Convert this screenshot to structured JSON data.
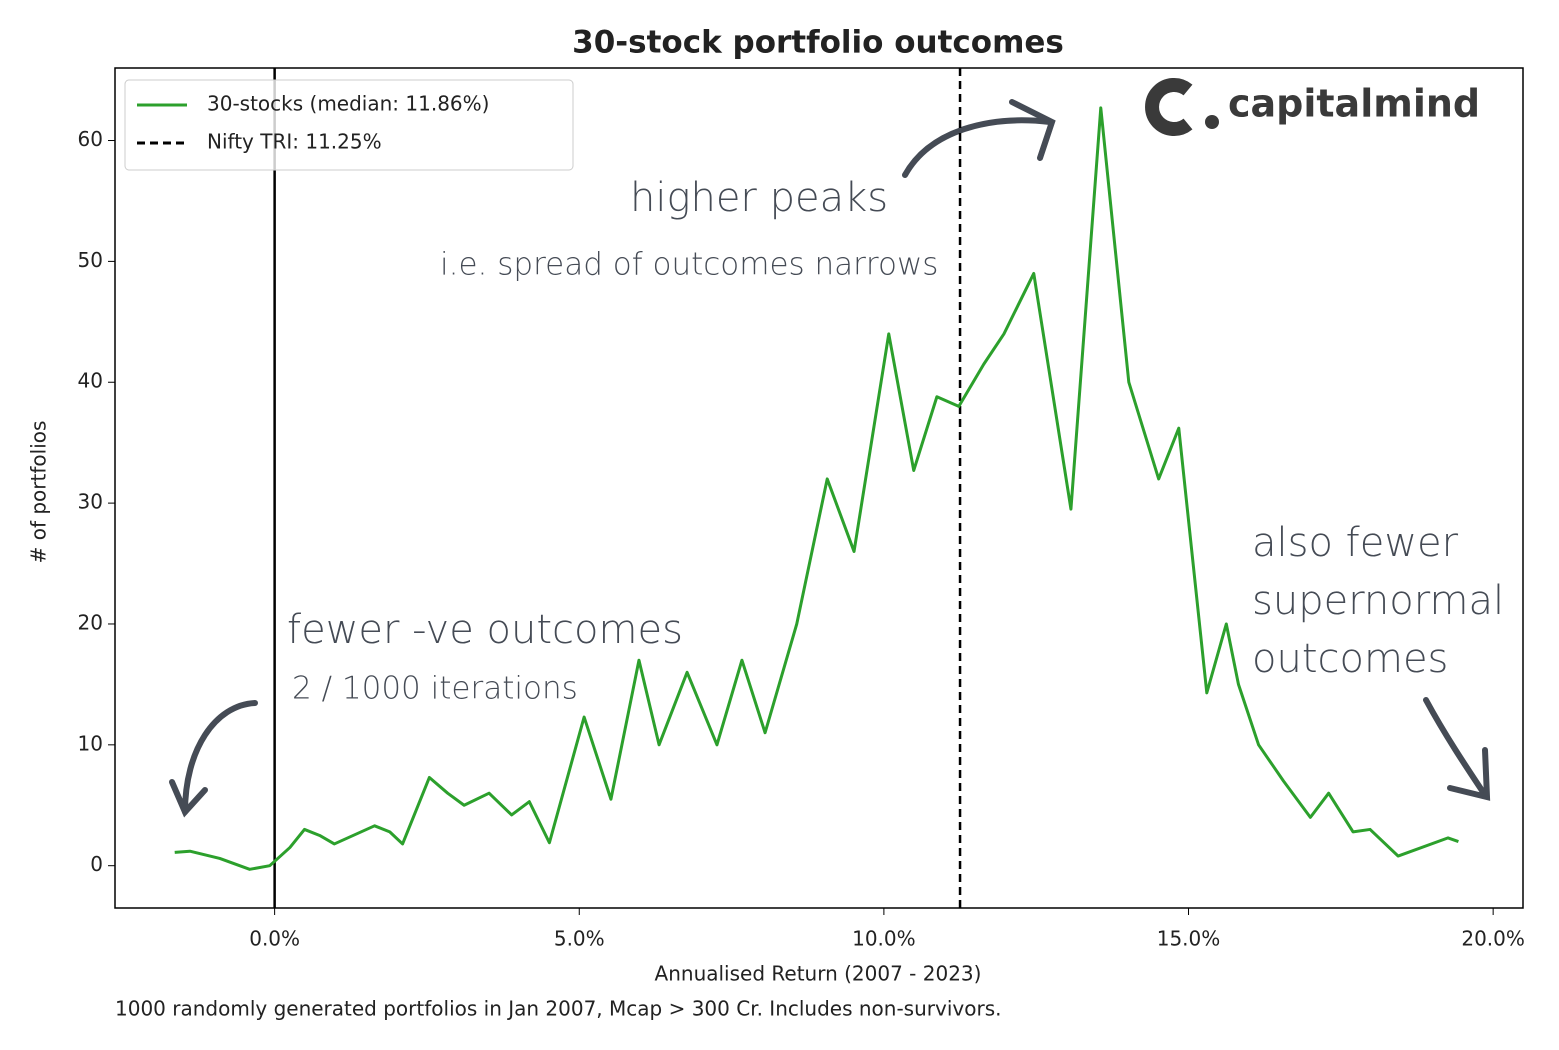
{
  "chart_data": {
    "type": "line",
    "title": "30-stock portfolio outcomes",
    "x_label": "Annualised Return (2007 - 2023)",
    "y_label": "# of portfolios",
    "caption": "1000 randomly generated portfolios in Jan 2007, Mcap > 300 Cr. Includes non-survivors.",
    "x": [
      -1.64,
      -1.39,
      -0.9,
      -0.41,
      -0.08,
      0.25,
      0.49,
      0.74,
      0.98,
      1.64,
      1.89,
      2.1,
      2.54,
      2.84,
      3.11,
      3.52,
      3.89,
      4.18,
      4.51,
      5.08,
      5.52,
      5.98,
      6.31,
      6.77,
      7.26,
      7.67,
      8.05,
      8.57,
      9.07,
      9.51,
      10.08,
      10.49,
      10.87,
      11.23,
      11.64,
      11.97,
      12.46,
      13.07,
      13.56,
      14.02,
      14.51,
      14.84,
      15.3,
      15.62,
      15.82,
      16.15,
      16.56,
      17.0,
      17.3,
      17.7,
      17.98,
      18.44,
      19.26,
      19.43
    ],
    "series": [
      {
        "name": "30-stocks (median: 11.86%)",
        "color": "#2ca02c",
        "values": [
          1.1,
          1.2,
          0.6,
          -0.3,
          0,
          1.5,
          3.0,
          2.5,
          1.8,
          3.3,
          2.8,
          1.8,
          7.3,
          6.0,
          5.0,
          6.0,
          4.2,
          5.3,
          1.9,
          12.3,
          5.5,
          17.0,
          10.0,
          16.0,
          10.0,
          17.0,
          11.0,
          20.0,
          32.0,
          26.0,
          44.0,
          32.7,
          38.8,
          38.0,
          41.5,
          44.0,
          49.0,
          29.5,
          62.7,
          40.0,
          32.0,
          36.2,
          14.3,
          20.0,
          15.0,
          10.0,
          7.0,
          4.0,
          6.0,
          2.8,
          3.0,
          0.8,
          2.3,
          2.0
        ]
      }
    ],
    "vlines": [
      {
        "name": "Nifty TRI: 11.25%",
        "x": 11.25,
        "color": "#000000",
        "dashed": true
      },
      {
        "x": 0,
        "color": "#000000",
        "dashed": false
      }
    ],
    "xlim": [
      -2.62,
      20.49
    ],
    "ylim": [
      -3.5,
      66
    ],
    "xticks": [
      {
        "value": 0,
        "label": "0.0%"
      },
      {
        "value": 5,
        "label": "5.0%"
      },
      {
        "value": 10,
        "label": "10.0%"
      },
      {
        "value": 15,
        "label": "15.0%"
      },
      {
        "value": 20,
        "label": "20.0%"
      }
    ],
    "yticks": [
      0,
      10,
      20,
      30,
      40,
      50,
      60
    ],
    "legend": "upper left",
    "annotations": [
      "higher peaks",
      "i.e. spread of outcomes narrows",
      "fewer -ve outcomes",
      "2 / 1000 iterations",
      "also fewer",
      "supernormal",
      "outcomes"
    ],
    "logo": "capitalmind"
  }
}
